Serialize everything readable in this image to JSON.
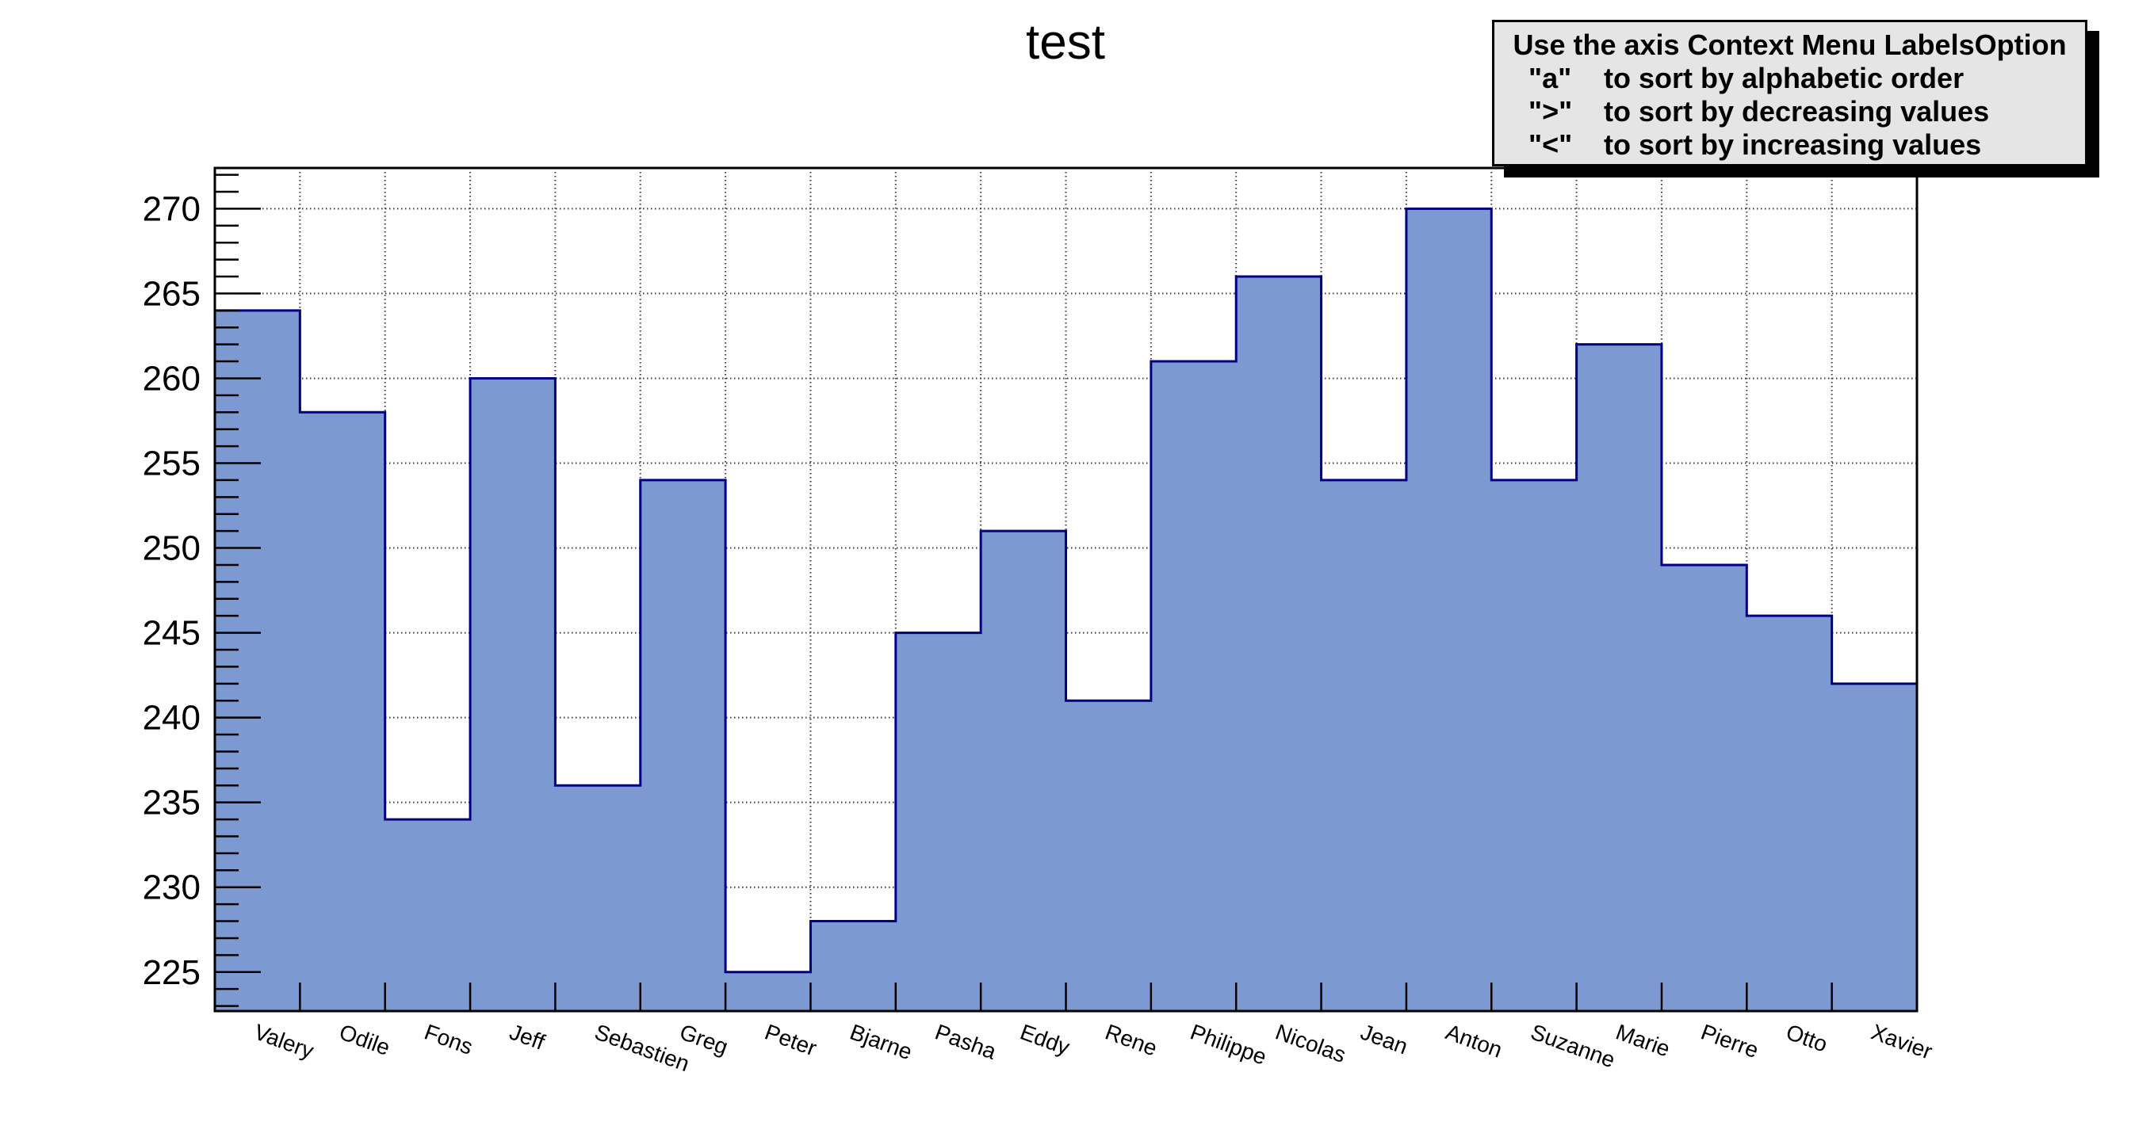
{
  "legend": {
    "title": "Use the axis Context Menu LabelsOption",
    "items": [
      {
        "key": "\"a\"",
        "desc": "to sort by alphabetic order"
      },
      {
        "key": "\">\"",
        "desc": "to sort by decreasing values"
      },
      {
        "key": "\"<\"",
        "desc": "to sort by increasing values"
      }
    ]
  },
  "chart_data": {
    "type": "bar",
    "title": "test",
    "categories": [
      "Valery",
      "Odile",
      "Fons",
      "Jeff",
      "Sebastien",
      "Greg",
      "Peter",
      "Bjarne",
      "Pasha",
      "Eddy",
      "Rene",
      "Philippe",
      "Nicolas",
      "Jean",
      "Anton",
      "Suzanne",
      "Marie",
      "Pierre",
      "Otto",
      "Xavier"
    ],
    "values": [
      264,
      258,
      234,
      260,
      236,
      254,
      225,
      228,
      245,
      251,
      241,
      261,
      266,
      254,
      270,
      254,
      262,
      249,
      246,
      242
    ],
    "xlabel": "",
    "ylabel": "",
    "ylim": [
      222.7,
      272.4
    ],
    "yticks": [
      225,
      230,
      235,
      240,
      245,
      250,
      255,
      260,
      265,
      270
    ],
    "minor_tick_step": 1,
    "bar_gap": 0,
    "grid": "dotted lines at every y major tick and every bin boundary",
    "x_label_rotation_deg": 20,
    "legend_position": "top-right"
  },
  "colors": {
    "background": "#ffffff",
    "bar_fill": "#7d99d1",
    "bar_outline": "#000080",
    "axis": "#000000",
    "grid": "#3a3a3a",
    "legend_bg": "#e5e5e5",
    "legend_border": "#000000",
    "legend_shadow": "#000000"
  }
}
